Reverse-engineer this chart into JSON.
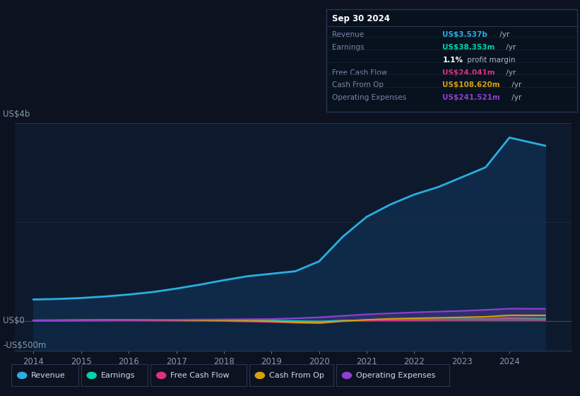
{
  "bg_color": "#0c1220",
  "plot_bg_color": "#0d1a2e",
  "title": "Sep 30 2024",
  "years": [
    2014,
    2014.5,
    2015,
    2015.5,
    2016,
    2016.5,
    2017,
    2017.5,
    2018,
    2018.5,
    2019,
    2019.5,
    2020,
    2020.5,
    2021,
    2021.5,
    2022,
    2022.5,
    2023,
    2023.5,
    2024,
    2024.75
  ],
  "revenue": [
    430,
    440,
    460,
    490,
    530,
    580,
    650,
    730,
    820,
    900,
    950,
    1000,
    1200,
    1700,
    2100,
    2350,
    2550,
    2700,
    2900,
    3100,
    3700,
    3537
  ],
  "earnings": [
    5,
    5,
    8,
    8,
    12,
    10,
    15,
    12,
    10,
    5,
    5,
    -5,
    -15,
    5,
    10,
    15,
    20,
    25,
    30,
    35,
    50,
    38
  ],
  "free_cash_flow": [
    2,
    3,
    5,
    8,
    10,
    8,
    5,
    0,
    -5,
    -15,
    -25,
    -40,
    -50,
    -10,
    5,
    10,
    15,
    20,
    25,
    30,
    35,
    24
  ],
  "cash_from_op": [
    10,
    12,
    15,
    18,
    20,
    18,
    15,
    10,
    5,
    0,
    -10,
    -30,
    -40,
    -5,
    20,
    40,
    50,
    60,
    70,
    80,
    110,
    109
  ],
  "operating_expenses": [
    8,
    10,
    12,
    15,
    18,
    20,
    22,
    25,
    28,
    32,
    35,
    50,
    70,
    100,
    130,
    150,
    170,
    185,
    200,
    220,
    245,
    242
  ],
  "revenue_color": "#2aaee0",
  "earnings_color": "#00d4aa",
  "fcf_color": "#e03080",
  "cashop_color": "#d4a010",
  "opex_color": "#9040d0",
  "ylabel_top": "US$4b",
  "ylabel_zero": "US$0",
  "ylabel_neg": "-US$500m",
  "ylim_top": 4000,
  "ylim_bottom": -600,
  "x_ticks": [
    2014,
    2015,
    2016,
    2017,
    2018,
    2019,
    2020,
    2021,
    2022,
    2023,
    2024
  ],
  "grid_color": "#1e3050",
  "legend_items": [
    {
      "label": "Revenue",
      "color": "#2aaee0"
    },
    {
      "label": "Earnings",
      "color": "#00d4aa"
    },
    {
      "label": "Free Cash Flow",
      "color": "#e03080"
    },
    {
      "label": "Cash From Op",
      "color": "#d4a010"
    },
    {
      "label": "Operating Expenses",
      "color": "#9040d0"
    }
  ],
  "tooltip_title": "Sep 30 2024",
  "tooltip_rows": [
    {
      "label": "Revenue",
      "value": "US$3.537b",
      "unit": " /yr",
      "color": "#2aaee0"
    },
    {
      "label": "Earnings",
      "value": "US$38.353m",
      "unit": " /yr",
      "color": "#00d4aa"
    },
    {
      "label": "",
      "value": "1.1%",
      "unit": " profit margin",
      "color": "#ffffff"
    },
    {
      "label": "Free Cash Flow",
      "value": "US$24.041m",
      "unit": " /yr",
      "color": "#e03080"
    },
    {
      "label": "Cash From Op",
      "value": "US$108.620m",
      "unit": " /yr",
      "color": "#d4a010"
    },
    {
      "label": "Operating Expenses",
      "value": "US$241.521m",
      "unit": " /yr",
      "color": "#9040d0"
    }
  ]
}
